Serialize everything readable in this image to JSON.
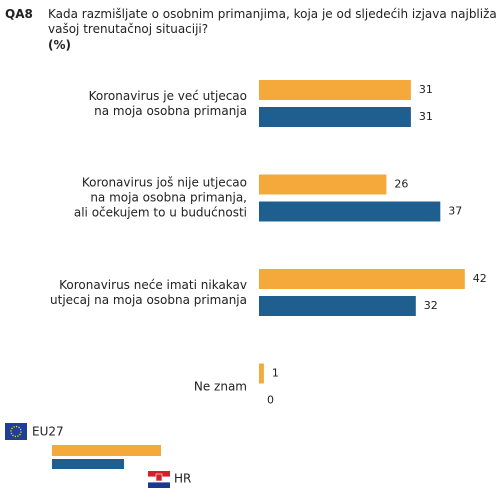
{
  "chart_data": {
    "type": "hbar",
    "title": "QA8",
    "subtitle": "Kada razmišljate o osobnim primanjima, koja je od sljedećih izjava najbliža\nvašoj trenutačnoj situaciji?",
    "unit_label": "(%)",
    "categories": [
      "Koronavirus je već utjecao\nna moja osobna primanja",
      "Koronavirus još nije utjecao\nna moja osobna primanja,\nali očekujem to u budućnosti",
      "Koronavirus neće imati nikakav\nutjecaj na moja osobna primanja",
      "Ne znam"
    ],
    "series": [
      {
        "name": "EU27",
        "color": "#f5a93a",
        "values": [
          31,
          26,
          42,
          1
        ]
      },
      {
        "name": "HR",
        "color": "#1f5f8f",
        "values": [
          31,
          37,
          32,
          0
        ]
      }
    ]
  }
}
